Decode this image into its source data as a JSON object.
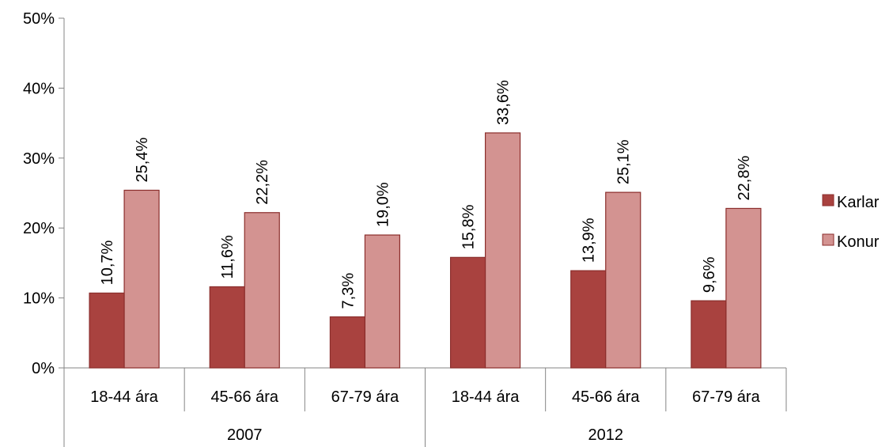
{
  "chart_data": {
    "type": "bar",
    "title": "",
    "xlabel": "",
    "ylabel": "",
    "ylim": [
      0,
      50
    ],
    "y_ticks": [
      {
        "value": 0,
        "label": "0%"
      },
      {
        "value": 10,
        "label": "10%"
      },
      {
        "value": 20,
        "label": "20%"
      },
      {
        "value": 30,
        "label": "30%"
      },
      {
        "value": 40,
        "label": "40%"
      },
      {
        "value": 50,
        "label": "50%"
      }
    ],
    "categories": [
      "18-44 ára",
      "45-66 ára",
      "67-79 ára",
      "18-44 ára",
      "45-66 ára",
      "67-79 ára"
    ],
    "groups": [
      {
        "label": "2007",
        "count": 3
      },
      {
        "label": "2012",
        "count": 3
      }
    ],
    "series": [
      {
        "name": "Karlar",
        "color": "#A9423F",
        "values": [
          10.7,
          11.6,
          7.3,
          15.8,
          13.9,
          9.6
        ],
        "labels": [
          "10,7%",
          "11,6%",
          "7,3%",
          "15,8%",
          "13,9%",
          "9,6%"
        ]
      },
      {
        "name": "Konur",
        "color": "#D39391",
        "values": [
          25.4,
          22.2,
          19.0,
          33.6,
          25.1,
          22.8
        ],
        "labels": [
          "25,4%",
          "22,2%",
          "19,0%",
          "33,6%",
          "25,1%",
          "22,8%"
        ]
      }
    ],
    "grid": false,
    "legend_position": "right",
    "bar_border_color": "#8B2E2C"
  }
}
